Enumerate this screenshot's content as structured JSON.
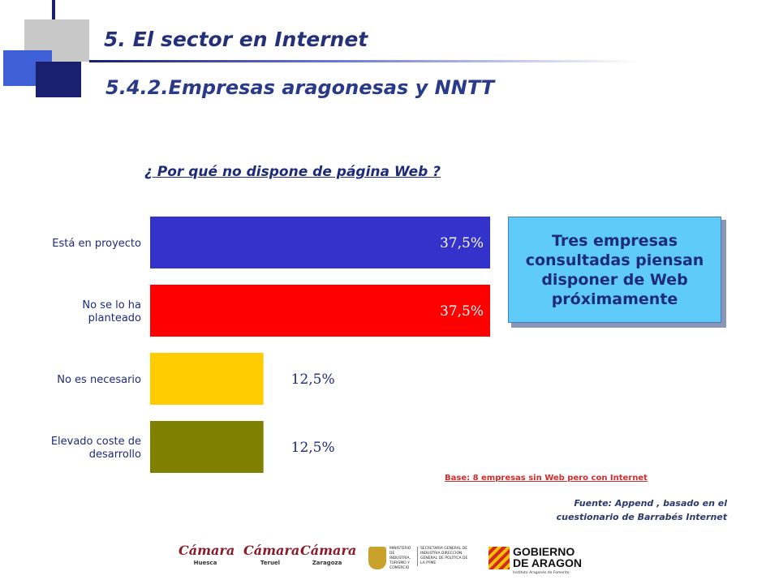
{
  "header": {
    "title": "5. El sector en Internet",
    "subtitle": "5.4.2.Empresas aragonesas y NNTT"
  },
  "question": "¿ Por qué no dispone de página Web ?",
  "chart_data": {
    "type": "bar",
    "orientation": "horizontal",
    "categories": [
      [
        "Está en proyecto"
      ],
      [
        "No se lo ha",
        "planteado"
      ],
      [
        "No es necesario"
      ],
      [
        "Elevado coste de",
        "desarrollo"
      ]
    ],
    "values": [
      37.5,
      37.5,
      12.5,
      12.5
    ],
    "value_labels": [
      "37,5%",
      "37,5%",
      "12,5%",
      "12,5%"
    ],
    "bar_colors": [
      "#3333cc",
      "#ff0000",
      "#ffcc00",
      "#808000"
    ],
    "title": "¿ Por qué no dispone de página Web ?",
    "xlabel": "",
    "ylabel": "",
    "xlim": [
      0,
      37.5
    ],
    "grid": false,
    "legend": "none"
  },
  "callout": "Tres empresas consultadas piensan disponer de Web próximamente",
  "base_note": "Base: 8 empresas sin Web pero con Internet",
  "source": {
    "line1": "Fuente: Append , basado en el",
    "line2": "cuestionario de Barrabés Internet"
  },
  "logos": {
    "camara_word": "Cámara",
    "camara_cities": [
      "Huesca",
      "Teruel",
      "Zaragoza"
    ],
    "ministerio_text": "MINISTERIO DE INDUSTRIA, TURISMO Y COMERCIO",
    "secretaria_text": "SECRETARÍA GENERAL DE INDUSTRIA DIRECCIÓN GENERAL DE POLÍTICA DE LA PYME",
    "gobierno_line1": "GOBIERNO",
    "gobierno_line2": "DE ARAGON",
    "gobierno_inst": "Instituto Aragonés de Fomento"
  }
}
